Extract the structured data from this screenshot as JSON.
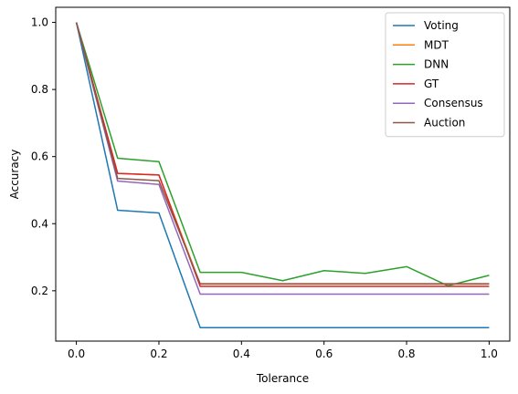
{
  "chart_data": {
    "type": "line",
    "title": "",
    "xlabel": "Tolerance",
    "ylabel": "Accuracy",
    "xlim": [
      -0.05,
      1.05
    ],
    "ylim": [
      0.05,
      1.045
    ],
    "xticks": [
      0.0,
      0.2,
      0.4,
      0.6,
      0.8,
      1.0
    ],
    "xtick_labels": [
      "0.0",
      "0.2",
      "0.4",
      "0.6",
      "0.8",
      "1.0"
    ],
    "yticks": [
      0.2,
      0.4,
      0.6,
      0.8,
      1.0
    ],
    "ytick_labels": [
      "0.2",
      "0.4",
      "0.6",
      "0.8",
      "1.0"
    ],
    "grid": false,
    "legend_position": "top-right",
    "x": [
      0.0,
      0.1,
      0.2,
      0.3,
      0.4,
      0.5,
      0.6,
      0.7,
      0.8,
      0.9,
      1.0
    ],
    "series": [
      {
        "name": "Voting",
        "color": "#1f77b4",
        "values": [
          1.0,
          0.44,
          0.432,
          0.09,
          0.09,
          0.09,
          0.09,
          0.09,
          0.09,
          0.09,
          0.09
        ]
      },
      {
        "name": "MDT",
        "color": "#ff7f0e",
        "values": [
          1.0,
          0.55,
          0.545,
          0.22,
          0.22,
          0.22,
          0.22,
          0.22,
          0.22,
          0.22,
          0.22
        ]
      },
      {
        "name": "DNN",
        "color": "#2ca02c",
        "values": [
          1.0,
          0.595,
          0.585,
          0.255,
          0.255,
          0.23,
          0.26,
          0.252,
          0.272,
          0.215,
          0.246
        ]
      },
      {
        "name": "GT",
        "color": "#d62728",
        "values": [
          1.0,
          0.55,
          0.545,
          0.213,
          0.213,
          0.213,
          0.213,
          0.213,
          0.213,
          0.213,
          0.213
        ]
      },
      {
        "name": "Consensus",
        "color": "#9467bd",
        "values": [
          1.0,
          0.527,
          0.517,
          0.19,
          0.19,
          0.19,
          0.19,
          0.19,
          0.19,
          0.19,
          0.19
        ]
      },
      {
        "name": "Auction",
        "color": "#8c564b",
        "values": [
          1.0,
          0.535,
          0.528,
          0.221,
          0.221,
          0.221,
          0.221,
          0.221,
          0.221,
          0.221,
          0.221
        ]
      }
    ]
  }
}
